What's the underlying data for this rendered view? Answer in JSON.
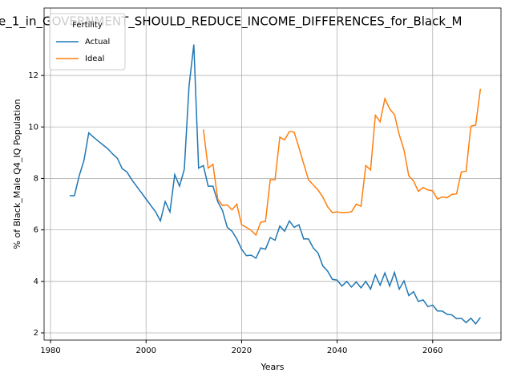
{
  "chart_data": {
    "type": "line",
    "title": "e_1_in_GOVERNMENT_SHOULD_REDUCE_INCOME_DIFFERENCES_for_Black_M",
    "x_label": "Years",
    "y_label": "% of Black_Male Q4_IQ Population",
    "legend_title": "Fertility",
    "legend": "upper left",
    "grid": true,
    "x": [
      1984,
      1985,
      1986,
      1987,
      1988,
      1989,
      1990,
      1991,
      1992,
      1993,
      1994,
      1995,
      1996,
      1997,
      1998,
      1999,
      2000,
      2001,
      2002,
      2003,
      2004,
      2005,
      2006,
      2007,
      2008,
      2009,
      2010,
      2011,
      2012,
      2013,
      2014,
      2015,
      2016,
      2017,
      2018,
      2019,
      2020,
      2021,
      2022,
      2023,
      2024,
      2025,
      2026,
      2027,
      2028,
      2029,
      2030,
      2031,
      2032,
      2033,
      2034,
      2035,
      2036,
      2037,
      2038,
      2039,
      2040,
      2041,
      2042,
      2043,
      2044,
      2045,
      2046,
      2047,
      2048,
      2049,
      2050,
      2051,
      2052,
      2053,
      2054,
      2055,
      2056,
      2057,
      2058,
      2059,
      2060,
      2061,
      2062,
      2063,
      2064,
      2065,
      2066,
      2067,
      2068,
      2069,
      2070
    ],
    "series": [
      {
        "name": "Actual",
        "color": "#1f77b4",
        "values": [
          7.33,
          7.33,
          8.1,
          8.7,
          9.77,
          9.6,
          9.45,
          9.3,
          9.15,
          8.95,
          8.78,
          8.38,
          8.25,
          7.95,
          7.7,
          7.45,
          7.2,
          6.95,
          6.7,
          6.35,
          7.1,
          6.7,
          8.15,
          7.7,
          8.35,
          11.6,
          13.2,
          8.4,
          8.5,
          7.7,
          7.7,
          7.1,
          6.75,
          6.1,
          5.95,
          5.65,
          5.25,
          5.0,
          5.02,
          4.9,
          5.3,
          5.25,
          5.7,
          5.6,
          6.15,
          5.95,
          6.35,
          6.1,
          6.2,
          5.65,
          5.65,
          5.3,
          5.1,
          4.6,
          4.4,
          4.08,
          4.05,
          3.82,
          4.0,
          3.78,
          3.98,
          3.75,
          4.0,
          3.7,
          4.25,
          3.85,
          4.33,
          3.82,
          4.35,
          3.7,
          4.02,
          3.45,
          3.6,
          3.22,
          3.28,
          3.02,
          3.08,
          2.85,
          2.85,
          2.72,
          2.7,
          2.55,
          2.57,
          2.4,
          2.57,
          2.35,
          2.6
        ]
      },
      {
        "name": "Ideal",
        "color": "#ff7f0e",
        "values": [
          null,
          null,
          null,
          null,
          null,
          null,
          null,
          null,
          null,
          null,
          null,
          null,
          null,
          null,
          null,
          null,
          null,
          null,
          null,
          null,
          null,
          null,
          null,
          null,
          null,
          null,
          null,
          null,
          9.9,
          8.4,
          8.55,
          7.2,
          6.95,
          6.97,
          6.78,
          7.0,
          6.2,
          6.1,
          5.98,
          5.8,
          6.3,
          6.33,
          7.95,
          7.95,
          9.6,
          9.5,
          9.82,
          9.8,
          9.2,
          8.57,
          7.95,
          7.75,
          7.55,
          7.28,
          6.9,
          6.67,
          6.7,
          6.67,
          6.68,
          6.7,
          7.0,
          6.92,
          8.5,
          8.33,
          10.45,
          10.2,
          11.1,
          10.7,
          10.48,
          9.7,
          9.1,
          8.1,
          7.9,
          7.5,
          7.65,
          7.55,
          7.52,
          7.2,
          7.28,
          7.25,
          7.38,
          7.4,
          8.25,
          8.28,
          10.03,
          10.07,
          11.48
        ]
      }
    ],
    "xlim": [
      1978.65,
      2074.3
    ],
    "xticks": [
      1980,
      2000,
      2020,
      2040,
      2060
    ],
    "ylim": [
      1.72,
      14.62
    ],
    "yticks": [
      2,
      4,
      6,
      8,
      10,
      12
    ]
  }
}
